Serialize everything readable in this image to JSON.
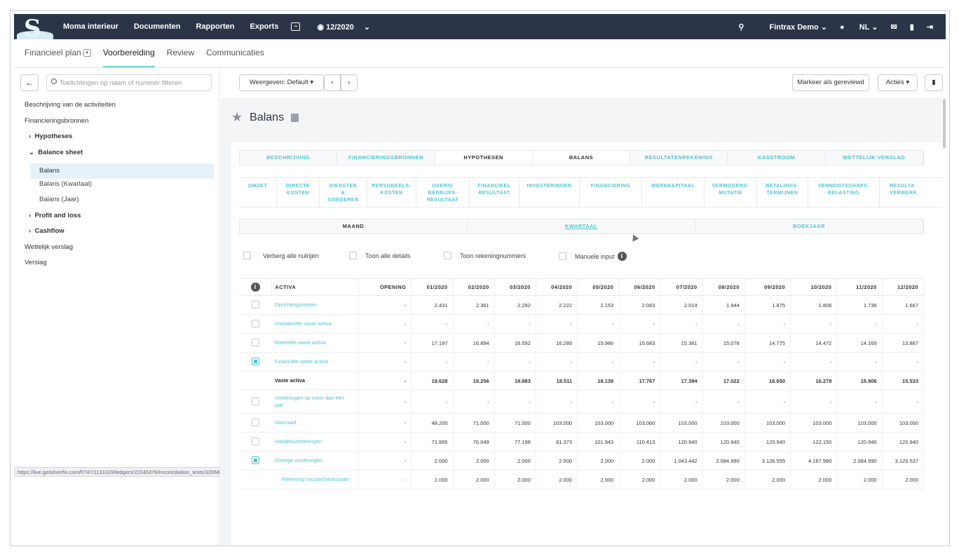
{
  "topnav": {
    "items": [
      "Moma interieur",
      "Documenten",
      "Rapporten",
      "Exports"
    ],
    "period": "12/2020",
    "account": "Fintrax Demo",
    "language": "NL",
    "icons": [
      "chart-icon",
      "eye-icon",
      "chevron-down-icon",
      "search-icon",
      "mail-icon",
      "chat-icon",
      "logout-icon"
    ]
  },
  "subnav": {
    "tabs": [
      "Financieel plan",
      "Voorbereiding",
      "Review",
      "Communicaties"
    ]
  },
  "sidebar": {
    "filter_placeholder": "Toelichtingen op naam of nummer filteren",
    "items": [
      "Beschrijving van de activiteiten",
      "Financieringsbronnen",
      "Hypotheses",
      "Balance sheet",
      "Balans",
      "Balans (Kwartaal)",
      "Balans (Jaar)",
      "Profit and loss",
      "Cashflow",
      "Wettelijk verslag",
      "Verslag"
    ],
    "status_url": "https://live.getsilverfin.com/f/747/1131029/ledgers/22245376/reconciliation_texts/32068296"
  },
  "toolbar": {
    "view": "Weergeven: Default",
    "mark_reviewed": "Markeer als gereviewd",
    "actions": "Acties"
  },
  "page": {
    "title": "Balans"
  },
  "tabs1": [
    "BESCHRIJVING",
    "FINANCIERINGSBRONNEN",
    "HYPOTHESEN",
    "BALANS",
    "RESULTATENREKENING",
    "KASSTROOM",
    "WETTELIJK VERSLAG"
  ],
  "tabs2": [
    "OMZET",
    "DIRECTE\nKOSTEN",
    "DIENSTEN\n&\nGOEDEREN",
    "PERSONEELS-\nKOSTEN",
    "OVERIG\nBEDRIJFS-\nRESULTAAT",
    "FINANCIEEL\nRESULTAAT",
    "INVESTERINGEN",
    "FINANCIERING",
    "WERKKAPITAAL",
    "VERMOGENS-\nMUTATIE",
    "BETALINGS-\nTERMIJNEN",
    "VENNOOTSCHAPS-\nBELASTING",
    "RESULTA\nVERWERK"
  ],
  "tabs3": [
    "MAAND",
    "KWARTAAL",
    "BOEKJAAR"
  ],
  "options": [
    "Verberg alle nulrijen",
    "Toon alle details",
    "Toon rekeningnummers",
    "Manuele input"
  ],
  "table": {
    "headers": [
      "ACTIVA",
      "OPENING",
      "01/2020",
      "02/2020",
      "03/2020",
      "04/2020",
      "05/2020",
      "06/2020",
      "07/2020",
      "08/2020",
      "09/2020",
      "10/2020",
      "11/2020",
      "12/2020"
    ],
    "rows": [
      {
        "label": "Oprichtingskosten",
        "cells": [
          "-",
          "2.431",
          "2.361",
          "2.292",
          "2.222",
          "2.153",
          "2.083",
          "2.014",
          "1.944",
          "1.875",
          "1.806",
          "1.736",
          "1.667"
        ]
      },
      {
        "label": "Immateriële vaste activa",
        "cells": [
          "-",
          "-",
          "-",
          "-",
          "-",
          "-",
          "-",
          "-",
          "-",
          "-",
          "-",
          "-",
          "-"
        ]
      },
      {
        "label": "Materiële vaste activa",
        "cells": [
          "-",
          "17.197",
          "16.894",
          "16.592",
          "16.289",
          "15.986",
          "15.683",
          "15.381",
          "15.078",
          "14.775",
          "14.472",
          "14.169",
          "13.867"
        ]
      },
      {
        "label": "Financiële vaste activa",
        "cells": [
          "-",
          "-",
          "-",
          "-",
          "-",
          "-",
          "-",
          "-",
          "-",
          "-",
          "-",
          "-",
          "-"
        ]
      },
      {
        "label": "Vaste activa",
        "cells": [
          "-",
          "19.628",
          "19.256",
          "18.883",
          "18.511",
          "18.139",
          "17.767",
          "17.394",
          "17.022",
          "16.650",
          "16.278",
          "15.906",
          "15.533"
        ]
      },
      {
        "label": "Vorderingen op meer dan één jaar",
        "cells": [
          "-",
          "-",
          "-",
          "-",
          "-",
          "-",
          "-",
          "-",
          "-",
          "-",
          "-",
          "-",
          "-"
        ]
      },
      {
        "label": "Voorraad",
        "cells": [
          "-",
          "48.200",
          "71.000",
          "71.000",
          "103.000",
          "103.000",
          "103.000",
          "103.000",
          "103.000",
          "103.000",
          "103.000",
          "103.000",
          "103.000"
        ]
      },
      {
        "label": "Handelsvorderingen",
        "cells": [
          "-",
          "71.995",
          "76.049",
          "77.198",
          "81.373",
          "101.943",
          "110.413",
          "120.940",
          "120.940",
          "120.940",
          "122.150",
          "120.940",
          "120.940"
        ]
      },
      {
        "label": "Overige vorderingen",
        "cells": [
          "-",
          "2.000",
          "2.000",
          "2.000",
          "2.000",
          "2.000",
          "2.000",
          "1.043.442",
          "2.084.990",
          "3.126.555",
          "4.167.980",
          "2.084.990",
          "3.126.537"
        ]
      },
      {
        "label": "Rekening courant bestuurder",
        "cells": [
          "-",
          "2.000",
          "2.000",
          "2.000",
          "2.000",
          "2.000",
          "2.000",
          "2.000",
          "2.000",
          "2.000",
          "2.000",
          "2.000",
          "2.000"
        ]
      }
    ]
  }
}
